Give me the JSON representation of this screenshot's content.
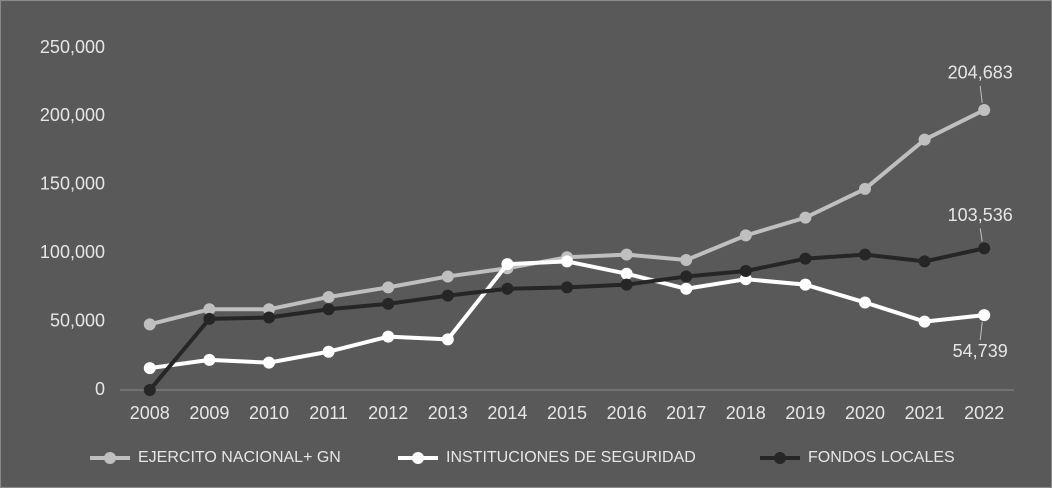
{
  "chart_data": {
    "type": "line",
    "categories": [
      "2008",
      "2009",
      "2010",
      "2011",
      "2012",
      "2013",
      "2014",
      "2015",
      "2016",
      "2017",
      "2018",
      "2019",
      "2020",
      "2021",
      "2022"
    ],
    "series": [
      {
        "name": "EJERCITO NACIONAL+ GN",
        "color": "#bfbfbf",
        "values": [
          48000,
          59000,
          59000,
          68000,
          75000,
          83000,
          89000,
          97000,
          99000,
          95000,
          113000,
          126000,
          147000,
          183000,
          204683
        ],
        "value_labels": [
          null,
          null,
          null,
          null,
          null,
          null,
          null,
          null,
          null,
          null,
          null,
          null,
          null,
          null,
          "204,683"
        ]
      },
      {
        "name": "INSTITUCIONES DE SEGURIDAD",
        "color": "#ffffff",
        "values": [
          16000,
          22000,
          20000,
          28000,
          39000,
          37000,
          92000,
          94000,
          85000,
          74000,
          81000,
          77000,
          64000,
          50000,
          54739
        ],
        "value_labels": [
          null,
          null,
          null,
          null,
          null,
          null,
          null,
          null,
          null,
          null,
          null,
          null,
          null,
          null,
          "54,739"
        ]
      },
      {
        "name": "FONDOS LOCALES",
        "color": "#262626",
        "values": [
          0,
          52000,
          53000,
          59000,
          63000,
          69000,
          74000,
          75000,
          77000,
          83000,
          87000,
          96000,
          99000,
          94000,
          103536
        ],
        "value_labels": [
          null,
          null,
          null,
          null,
          null,
          null,
          null,
          null,
          null,
          null,
          null,
          null,
          null,
          null,
          "103,536"
        ]
      }
    ],
    "ylim": [
      0,
      250000
    ],
    "yticks": [
      0,
      {
        "value": 50000,
        "label": "50,000"
      },
      {
        "value": 100000,
        "label": "100,000"
      },
      {
        "value": 150000,
        "label": "150,000"
      },
      {
        "value": 200000,
        "label": "200,000"
      },
      {
        "value": 250000,
        "label": "250,000"
      }
    ],
    "grid": false,
    "legend": "bottom"
  }
}
